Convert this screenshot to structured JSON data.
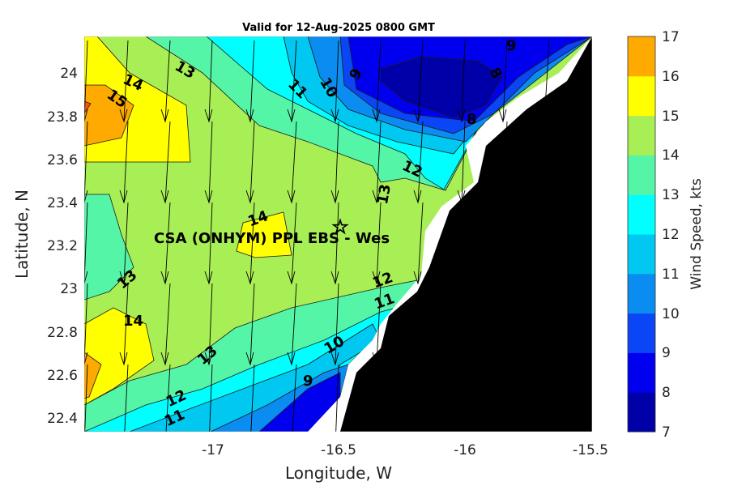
{
  "title": "Valid for 12-Aug-2025 0800 GMT",
  "x_axis": {
    "label": "Longitude, W",
    "ticks": [
      "-17",
      "-16.5",
      "-16",
      "-15.5"
    ]
  },
  "y_axis": {
    "label": "Latitude, N",
    "ticks": [
      "24",
      "23.8",
      "23.6",
      "23.4",
      "23.2",
      "23",
      "22.8",
      "22.6",
      "22.4"
    ]
  },
  "site": {
    "label": "CSA (ONHYM) PPL EBS  - Wes",
    "marker": "star"
  },
  "colorbar": {
    "label": "Wind Speed, kts",
    "ticks": [
      "17",
      "16",
      "15",
      "14",
      "13",
      "12",
      "11",
      "10",
      "9",
      "8",
      "7"
    ],
    "colors": [
      "#0000a8",
      "#0000ef",
      "#0a46f5",
      "#0a8cf0",
      "#00c8f0",
      "#00ffff",
      "#55f5a8",
      "#a8ee55",
      "#ffff00",
      "#ffaa00",
      "#ff5500"
    ]
  },
  "contour_labels": [
    "14",
    "13",
    "15",
    "11",
    "10",
    "9",
    "8",
    "9",
    "8",
    "12",
    "13",
    "14",
    "13",
    "12",
    "11",
    "14",
    "13",
    "10",
    "12",
    "11",
    "9"
  ],
  "colors": {
    "land": "#000000",
    "coast_gap": "#ffffff",
    "arrow": "#000000"
  }
}
